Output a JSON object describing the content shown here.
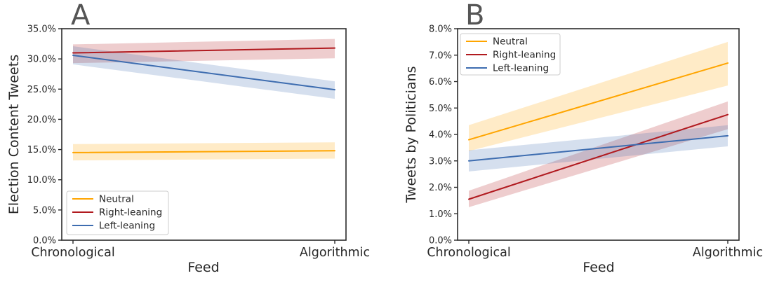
{
  "figure": {
    "background": "#ffffff"
  },
  "colors": {
    "spine": "#2b2b2b",
    "tick_label": "#262626",
    "axis_label": "#262626",
    "panel_label": "#555555",
    "legend_border": "#cccccc",
    "legend_background": "#ffffff",
    "band_opacity": 0.22
  },
  "chart_data": [
    {
      "type": "line",
      "panel_label": "A",
      "xlabel": "Feed",
      "ylabel": "Election Content Tweets",
      "categories": [
        "Chronological",
        "Algorithmic"
      ],
      "ylim": [
        0,
        35
      ],
      "ytick_step": 5,
      "ytick_format": "percent_1dp",
      "grid": false,
      "legend_position": "lower-left",
      "series": [
        {
          "name": "Neutral",
          "color": "#FFA500",
          "values": [
            14.5,
            14.8
          ],
          "band_lower": [
            13.2,
            13.5
          ],
          "band_upper": [
            15.9,
            16.2
          ]
        },
        {
          "name": "Right-leaning",
          "color": "#B11A1F",
          "values": [
            31.0,
            31.8
          ],
          "band_lower": [
            29.3,
            30.1
          ],
          "band_upper": [
            32.4,
            33.3
          ]
        },
        {
          "name": "Left-leaning",
          "color": "#3E6DB0",
          "values": [
            30.6,
            24.9
          ],
          "band_lower": [
            29.1,
            23.4
          ],
          "band_upper": [
            32.1,
            26.3
          ]
        }
      ]
    },
    {
      "type": "line",
      "panel_label": "B",
      "xlabel": "Feed",
      "ylabel": "Tweets by Politicians",
      "categories": [
        "Chronological",
        "Algorithmic"
      ],
      "ylim": [
        0,
        8
      ],
      "ytick_step": 1,
      "ytick_format": "percent_1dp",
      "grid": false,
      "legend_position": "upper-left",
      "series": [
        {
          "name": "Neutral",
          "color": "#FFA500",
          "values": [
            3.8,
            6.7
          ],
          "band_lower": [
            3.37,
            5.85
          ],
          "band_upper": [
            4.35,
            7.5
          ]
        },
        {
          "name": "Right-leaning",
          "color": "#B11A1F",
          "values": [
            1.55,
            4.75
          ],
          "band_lower": [
            1.25,
            4.2
          ],
          "band_upper": [
            1.87,
            5.25
          ]
        },
        {
          "name": "Left-leaning",
          "color": "#3E6DB0",
          "values": [
            3.0,
            3.95
          ],
          "band_lower": [
            2.6,
            3.55
          ],
          "band_upper": [
            3.4,
            4.35
          ]
        }
      ]
    }
  ]
}
